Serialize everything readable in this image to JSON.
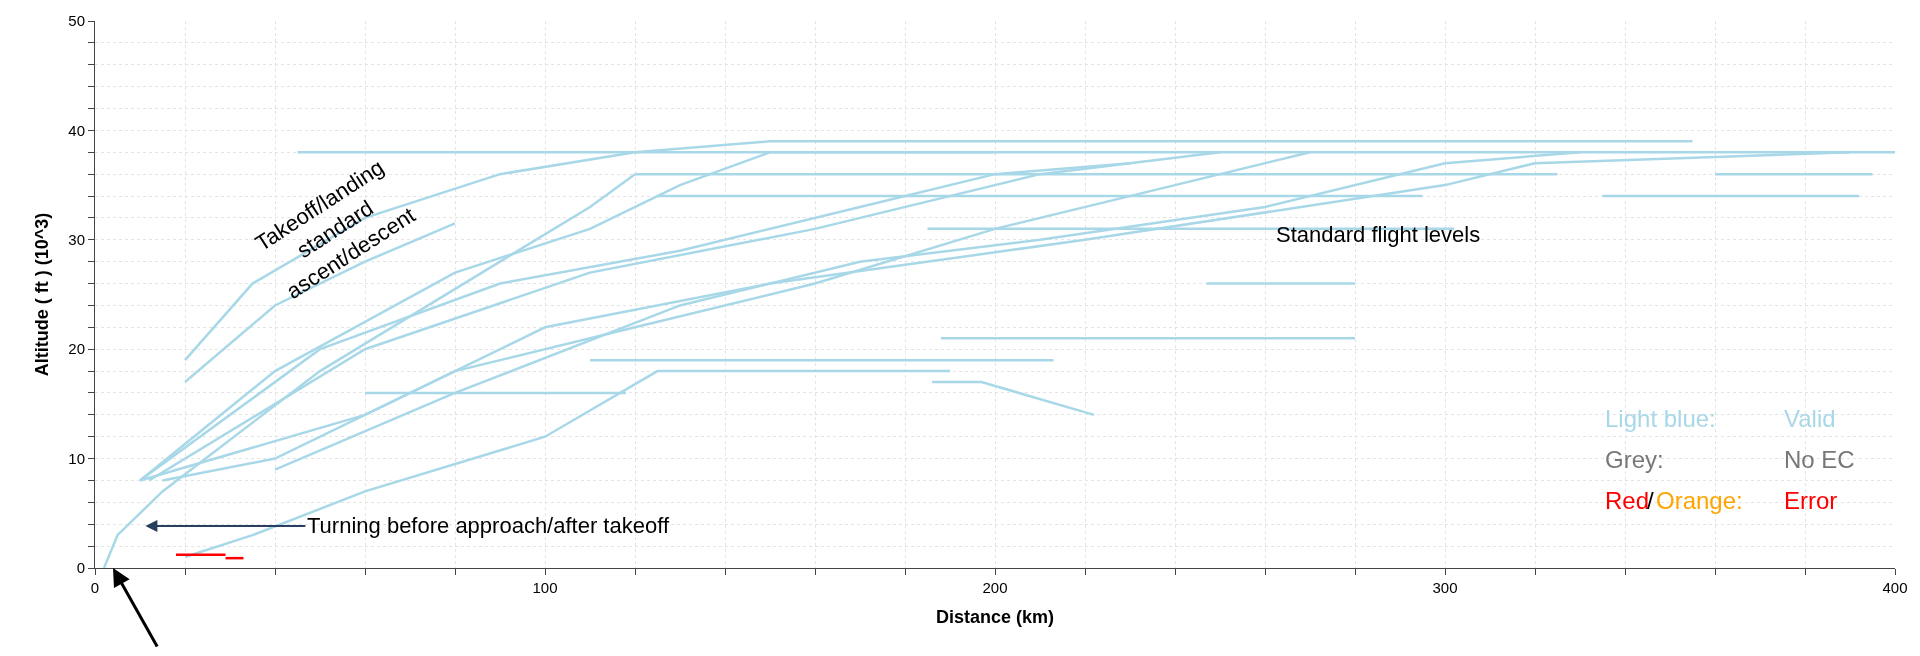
{
  "chart_data": {
    "type": "line",
    "xlabel": "Distance (km)",
    "ylabel": "Altitude ( ft ) (10^3)",
    "xlim": [
      0,
      400
    ],
    "ylim": [
      0,
      50
    ],
    "xticks": [
      0,
      {
        "value": 20,
        "label": null
      },
      {
        "value": 40,
        "label": null
      },
      {
        "value": 60,
        "label": null
      },
      {
        "value": 80,
        "label": null
      },
      100,
      {
        "value": 120,
        "label": null
      },
      {
        "value": 140,
        "label": null
      },
      {
        "value": 160,
        "label": null
      },
      {
        "value": 180,
        "label": null
      },
      200,
      {
        "value": 220,
        "label": null
      },
      {
        "value": 240,
        "label": null
      },
      {
        "value": 260,
        "label": null
      },
      {
        "value": 280,
        "label": null
      },
      300,
      {
        "value": 320,
        "label": null
      },
      {
        "value": 340,
        "label": null
      },
      {
        "value": 360,
        "label": null
      },
      {
        "value": 380,
        "label": null
      },
      400
    ],
    "yticks": [
      0,
      {
        "value": 2,
        "label": null
      },
      {
        "value": 4,
        "label": null
      },
      {
        "value": 6,
        "label": null
      },
      {
        "value": 8,
        "label": null
      },
      10,
      {
        "value": 12,
        "label": null
      },
      {
        "value": 14,
        "label": null
      },
      {
        "value": 16,
        "label": null
      },
      {
        "value": 18,
        "label": null
      },
      20,
      {
        "value": 22,
        "label": null
      },
      {
        "value": 24,
        "label": null
      },
      {
        "value": 26,
        "label": null
      },
      {
        "value": 28,
        "label": null
      },
      30,
      {
        "value": 32,
        "label": null
      },
      {
        "value": 34,
        "label": null
      },
      {
        "value": 36,
        "label": null
      },
      {
        "value": 38,
        "label": null
      },
      40,
      {
        "value": 42,
        "label": null
      },
      {
        "value": 44,
        "label": null
      },
      {
        "value": 46,
        "label": null
      },
      {
        "value": 48,
        "label": null
      },
      50
    ],
    "grid": true,
    "marker": "none",
    "line_style": "solid",
    "series": [
      {
        "color": "#a8d8e8",
        "x": [
          20,
          35,
          60,
          90,
          120,
          150,
          355
        ],
        "values": [
          19,
          26,
          32,
          36,
          38,
          39,
          39
        ]
      },
      {
        "color": "#a8d8e8",
        "x": [
          20,
          40,
          60,
          80
        ],
        "values": [
          17,
          24,
          28,
          31.5
        ]
      },
      {
        "color": "#a8d8e8",
        "x": [
          45,
          400
        ],
        "values": [
          38,
          38
        ]
      },
      {
        "color": "#a8d8e8",
        "x": [
          120,
          325
        ],
        "values": [
          36,
          36
        ]
      },
      {
        "color": "#a8d8e8",
        "x": [
          360,
          395
        ],
        "values": [
          36,
          36
        ]
      },
      {
        "color": "#a8d8e8",
        "x": [
          125,
          295
        ],
        "values": [
          34,
          34
        ]
      },
      {
        "color": "#a8d8e8",
        "x": [
          335,
          392
        ],
        "values": [
          34,
          34
        ]
      },
      {
        "color": "#a8d8e8",
        "x": [
          185,
          302
        ],
        "values": [
          31,
          31
        ]
      },
      {
        "color": "#a8d8e8",
        "x": [
          247,
          280
        ],
        "values": [
          26,
          26
        ]
      },
      {
        "color": "#a8d8e8",
        "x": [
          188,
          280
        ],
        "values": [
          21,
          21
        ]
      },
      {
        "color": "#a8d8e8",
        "x": [
          110,
          213
        ],
        "values": [
          19,
          19
        ]
      },
      {
        "color": "#a8d8e8",
        "x": [
          60,
          118
        ],
        "values": [
          16,
          16
        ]
      },
      {
        "color": "#a8d8e8",
        "x": [
          186,
          197,
          222
        ],
        "values": [
          17,
          17,
          14
        ]
      },
      {
        "color": "#a8d8e8",
        "x": [
          10,
          40,
          80,
          110,
          130,
          150,
          200
        ],
        "values": [
          8,
          18,
          27,
          31,
          35,
          38,
          38
        ]
      },
      {
        "color": "#a8d8e8",
        "x": [
          10,
          50,
          90,
          130,
          170,
          200,
          230
        ],
        "values": [
          8,
          20,
          26,
          29,
          33,
          36,
          37
        ]
      },
      {
        "color": "#a8d8e8",
        "x": [
          12,
          60,
          110,
          160,
          210,
          250
        ],
        "values": [
          8,
          20,
          27,
          31,
          36,
          38
        ]
      },
      {
        "color": "#a8d8e8",
        "x": [
          15,
          40,
          80,
          120,
          160,
          200,
          240,
          270
        ],
        "values": [
          8,
          10,
          18,
          22,
          26,
          31,
          35,
          38
        ]
      },
      {
        "color": "#a8d8e8",
        "x": [
          20,
          35,
          60,
          100,
          125,
          190
        ],
        "values": [
          1,
          3,
          7,
          12,
          18,
          18
        ]
      },
      {
        "color": "#a8d8e8",
        "x": [
          40,
          80,
          130,
          170,
          210,
          260,
          300,
          330
        ],
        "values": [
          9,
          16,
          24,
          28,
          30,
          33,
          37,
          38
        ]
      },
      {
        "color": "#a8d8e8",
        "x": [
          10,
          60,
          100,
          150,
          220,
          300,
          320,
          390
        ],
        "values": [
          8,
          14,
          22,
          26,
          30,
          35,
          37,
          38
        ]
      },
      {
        "color": "#a8d8e8",
        "x": [
          2,
          5,
          15,
          50,
          90,
          110,
          120
        ],
        "values": [
          0,
          3,
          7,
          18,
          28,
          33,
          36
        ]
      },
      {
        "color": "#ff0000",
        "x": [
          18,
          29
        ],
        "values": [
          1.2,
          1.2
        ]
      },
      {
        "color": "#ff0000",
        "x": [
          29,
          33
        ],
        "values": [
          0.9,
          0.9
        ]
      }
    ],
    "annotations": [
      "Takeoff/landing\nstandard\nascent/descent",
      "Turning before approach/after takeoff",
      "Standard flight levels",
      "Light blue:",
      "Valid",
      "Grey:",
      "No EC",
      "Red",
      "/",
      "Orange:",
      "Error"
    ]
  }
}
